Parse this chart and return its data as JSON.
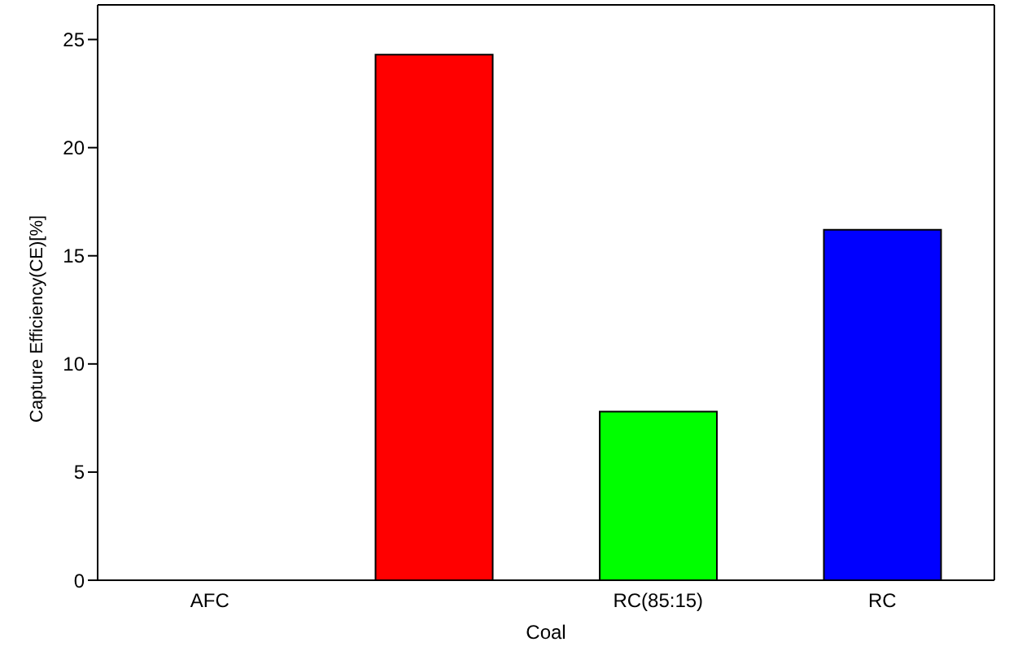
{
  "chart_data": {
    "type": "bar",
    "xlabel": "Coal",
    "ylabel": "Capture Efficiency(CE)[%]",
    "categories": [
      "AFC",
      null,
      "RC(85:15)",
      "RC"
    ],
    "values": [
      null,
      24.3,
      7.8,
      16.2
    ],
    "colors": [
      "#000000",
      "#ff0000",
      "#00ff00",
      "#0000ff"
    ],
    "ylim": [
      0,
      26.6
    ],
    "yticks": [
      0,
      5,
      10,
      15,
      20,
      25
    ]
  }
}
